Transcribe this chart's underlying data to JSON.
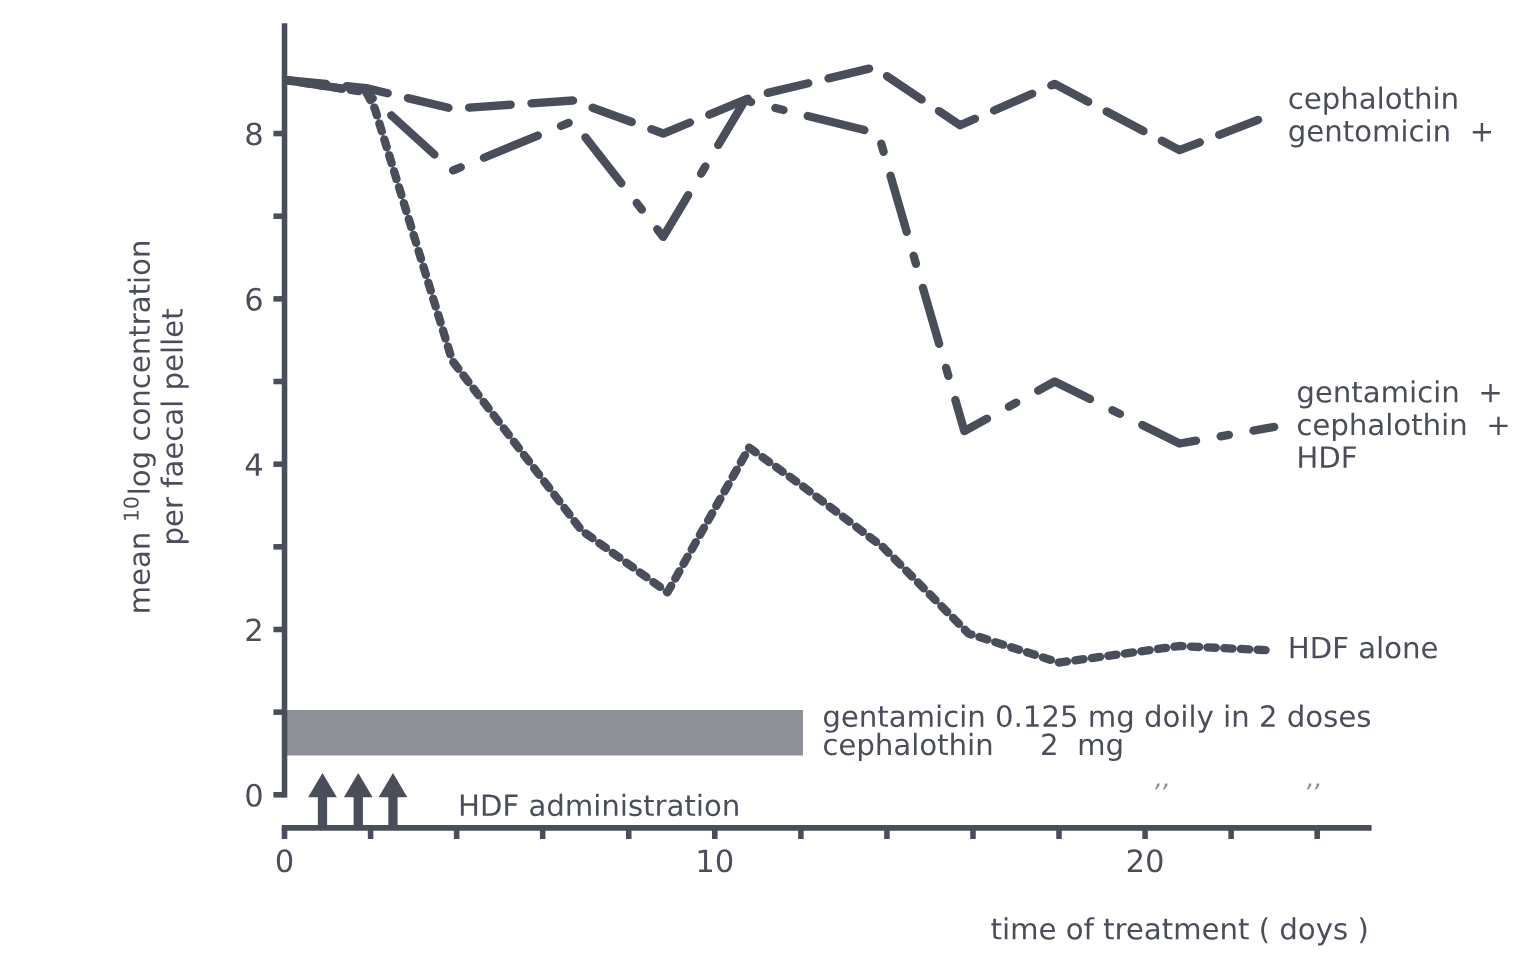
{
  "chart_data": {
    "type": "line",
    "xlabel": "time of treatment ( doys )",
    "ylabel": "mean $^{10}$log concentration\nper faecal pellet",
    "xlim": [
      0,
      25.2
    ],
    "ylim": [
      -0.4,
      9.3
    ],
    "xticks": [
      0,
      {
        "value": 2,
        "label": null
      },
      {
        "value": 4,
        "label": null
      },
      {
        "value": 6,
        "label": null
      },
      {
        "value": 8,
        "label": null
      },
      10,
      {
        "value": 12,
        "label": null
      },
      {
        "value": 14,
        "label": null
      },
      {
        "value": 16,
        "label": null
      },
      {
        "value": 18,
        "label": null
      },
      20,
      {
        "value": 22,
        "label": null
      },
      {
        "value": 24,
        "label": null
      }
    ],
    "yticks": [
      0,
      {
        "value": 1,
        "label": null
      },
      2,
      {
        "value": 3,
        "label": null
      },
      4,
      {
        "value": 5,
        "label": null
      },
      6,
      {
        "value": 7,
        "label": null
      },
      8
    ],
    "grid": false,
    "legend": false,
    "marker": "none",
    "series": [
      {
        "name": "cephalothin\ngentomicin  +",
        "color": "#4a4e5a",
        "line_style": "dashed",
        "x": [
          0,
          1.9,
          3.9,
          6.7,
          8.8,
          10.9,
          13.7,
          15.7,
          17.9,
          20.8,
          22.8
        ],
        "values": [
          8.65,
          8.55,
          8.3,
          8.4,
          8.0,
          8.45,
          8.8,
          8.1,
          8.6,
          7.8,
          8.2
        ]
      },
      {
        "name": "gentamicin  +\ncephalothin  +\nHDF",
        "color": "#4a4e5a",
        "line_style": "dashdot",
        "x": [
          0,
          1.9,
          2.1,
          3.9,
          6.7,
          8.8,
          10.7,
          13.8,
          15.8,
          17.9,
          20.8,
          23.0
        ],
        "values": [
          8.65,
          8.5,
          8.4,
          7.55,
          8.15,
          6.75,
          8.4,
          8.0,
          4.4,
          5.0,
          4.25,
          4.45
        ]
      },
      {
        "name": "HDF alone",
        "color": "#4a4e5a",
        "line_style": "dotted",
        "x": [
          0,
          1.9,
          2.1,
          3.9,
          6.9,
          8.9,
          10.8,
          12.0,
          13.9,
          15.9,
          18.0,
          20.8,
          22.8
        ],
        "values": [
          8.65,
          8.5,
          8.3,
          5.25,
          3.2,
          2.45,
          4.2,
          3.75,
          3.0,
          1.95,
          1.6,
          1.8,
          1.75
        ]
      }
    ],
    "bands": [
      {
        "axis": "x",
        "from": 0,
        "to": 12,
        "label": "gentamicin 0.125 mg doily in 2 doses\ncephalothin     2  mg",
        "color": "#8e9098"
      }
    ],
    "annotations": [
      "HDF administration",
      ",,",
      ",,"
    ]
  }
}
